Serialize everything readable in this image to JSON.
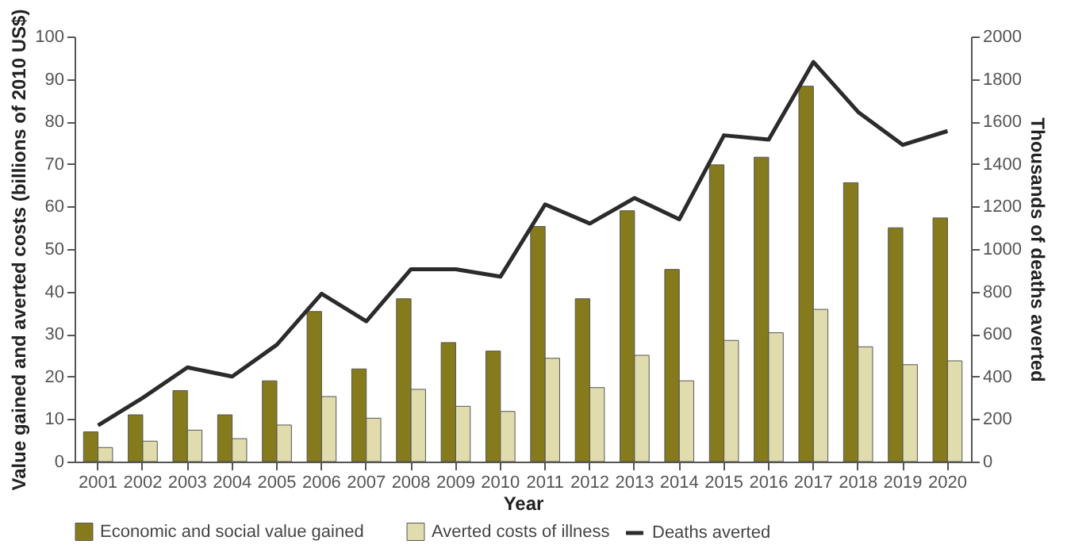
{
  "chart_data": {
    "type": "bar",
    "xlabel": "Year",
    "ylabel": "Value gained and averted costs (billions of 2010 US$)",
    "y2label": "Thousands of deaths averted",
    "categories": [
      "2001",
      "2002",
      "2003",
      "2004",
      "2005",
      "2006",
      "2007",
      "2008",
      "2009",
      "2010",
      "2011",
      "2012",
      "2013",
      "2014",
      "2015",
      "2016",
      "2017",
      "2018",
      "2019",
      "2020"
    ],
    "series": [
      {
        "name": "Economic and social value gained",
        "color": "#857a1c",
        "values": [
          7,
          11,
          16.7,
          11,
          19,
          35.3,
          21.8,
          38.3,
          28,
          26,
          55.3,
          38.3,
          59,
          45.2,
          69.8,
          71.6,
          88.3,
          65.6,
          55,
          57.3
        ]
      },
      {
        "name": "Averted costs of illness",
        "color": "#e0dcae",
        "values": [
          3.3,
          4.8,
          7.4,
          5.4,
          8.6,
          15.3,
          10.2,
          17,
          13,
          11.8,
          24.3,
          17.4,
          25,
          19,
          28.5,
          30.3,
          35.8,
          27,
          22.8,
          23.7
        ]
      },
      {
        "name": "Deaths averted",
        "type": "line",
        "axis": "y2",
        "color": "#2b2b2b",
        "values": [
          170,
          300,
          443,
          400,
          550,
          790,
          660,
          905,
          905,
          870,
          1210,
          1120,
          1240,
          1140,
          1535,
          1515,
          1880,
          1645,
          1490,
          1555
        ]
      }
    ],
    "ylim": [
      0,
      100
    ],
    "yticks": [
      0,
      10,
      20,
      30,
      40,
      50,
      60,
      70,
      80,
      90,
      100
    ],
    "y2lim": [
      0,
      2000
    ],
    "y2ticks": [
      0,
      200,
      400,
      600,
      800,
      1000,
      1200,
      1400,
      1600,
      1800,
      2000
    ],
    "legend": "bottom",
    "grid": false
  }
}
